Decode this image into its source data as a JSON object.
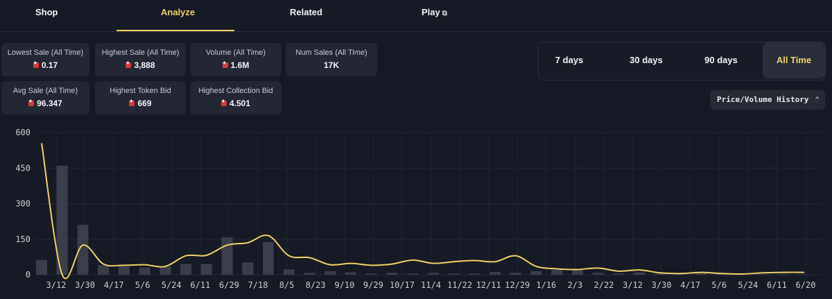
{
  "tabs": [
    {
      "label": "Shop"
    },
    {
      "label": "Analyze"
    },
    {
      "label": "Related"
    },
    {
      "label": "Play",
      "icon": "external-link-icon"
    }
  ],
  "active_tab": "Analyze",
  "stats": [
    {
      "label": "Lowest Sale (All Time)",
      "value": "0.17",
      "icon": "currency-icon"
    },
    {
      "label": "Highest Sale (All Time)",
      "value": "3,888",
      "icon": "currency-icon"
    },
    {
      "label": "Volume (All Time)",
      "value": "1.6M",
      "icon": "currency-icon"
    },
    {
      "label": "Num Sales (All Time)",
      "value": "17K"
    },
    {
      "label": "Avg Sale (All Time)",
      "value": "96.347",
      "icon": "currency-icon"
    },
    {
      "label": "Highest Token Bid",
      "value": "669",
      "icon": "currency-icon"
    },
    {
      "label": "Highest Collection Bid",
      "value": "4.501",
      "icon": "currency-icon"
    }
  ],
  "range_options": [
    "7 days",
    "30 days",
    "90 days",
    "All Time"
  ],
  "range_selected": "All Time",
  "history_select": {
    "value": "Price/Volume History",
    "icon": "chevron-updown-icon"
  },
  "colors": {
    "accent": "#f0d06a",
    "background": "#161a24",
    "panel": "#232734",
    "currency": "#d83a3a"
  },
  "chart_data": {
    "type": "line",
    "grid": true,
    "ylim": [
      0,
      600
    ],
    "yticks": [
      0,
      150,
      300,
      450,
      600
    ],
    "x_labels": [
      "3/12",
      "3/30",
      "4/17",
      "5/6",
      "5/24",
      "6/11",
      "6/29",
      "7/18",
      "8/5",
      "8/23",
      "9/10",
      "9/29",
      "10/17",
      "11/4",
      "11/22",
      "12/11",
      "12/29",
      "1/16",
      "2/3",
      "2/22",
      "3/12",
      "3/30",
      "4/17",
      "5/6",
      "5/24",
      "6/11",
      "6/20"
    ],
    "series": [
      {
        "type": "line",
        "color": "#f0d06a",
        "values": [
          555,
          0,
          125,
          45,
          40,
          42,
          35,
          80,
          82,
          125,
          135,
          165,
          80,
          72,
          42,
          48,
          40,
          45,
          62,
          48,
          55,
          60,
          55,
          80,
          35,
          25,
          22,
          28,
          15,
          20,
          8,
          5,
          10,
          5,
          3,
          8,
          10,
          10
        ]
      },
      {
        "type": "bar",
        "color": "#3a3e4a",
        "values": [
          62,
          460,
          210,
          40,
          35,
          30,
          35,
          45,
          45,
          158,
          52,
          138,
          22,
          8,
          15,
          10,
          5,
          8,
          5,
          8,
          5,
          5,
          12,
          8,
          15,
          22,
          20,
          8,
          5,
          10,
          5,
          3,
          8,
          5,
          3,
          2,
          2,
          2
        ]
      }
    ]
  }
}
